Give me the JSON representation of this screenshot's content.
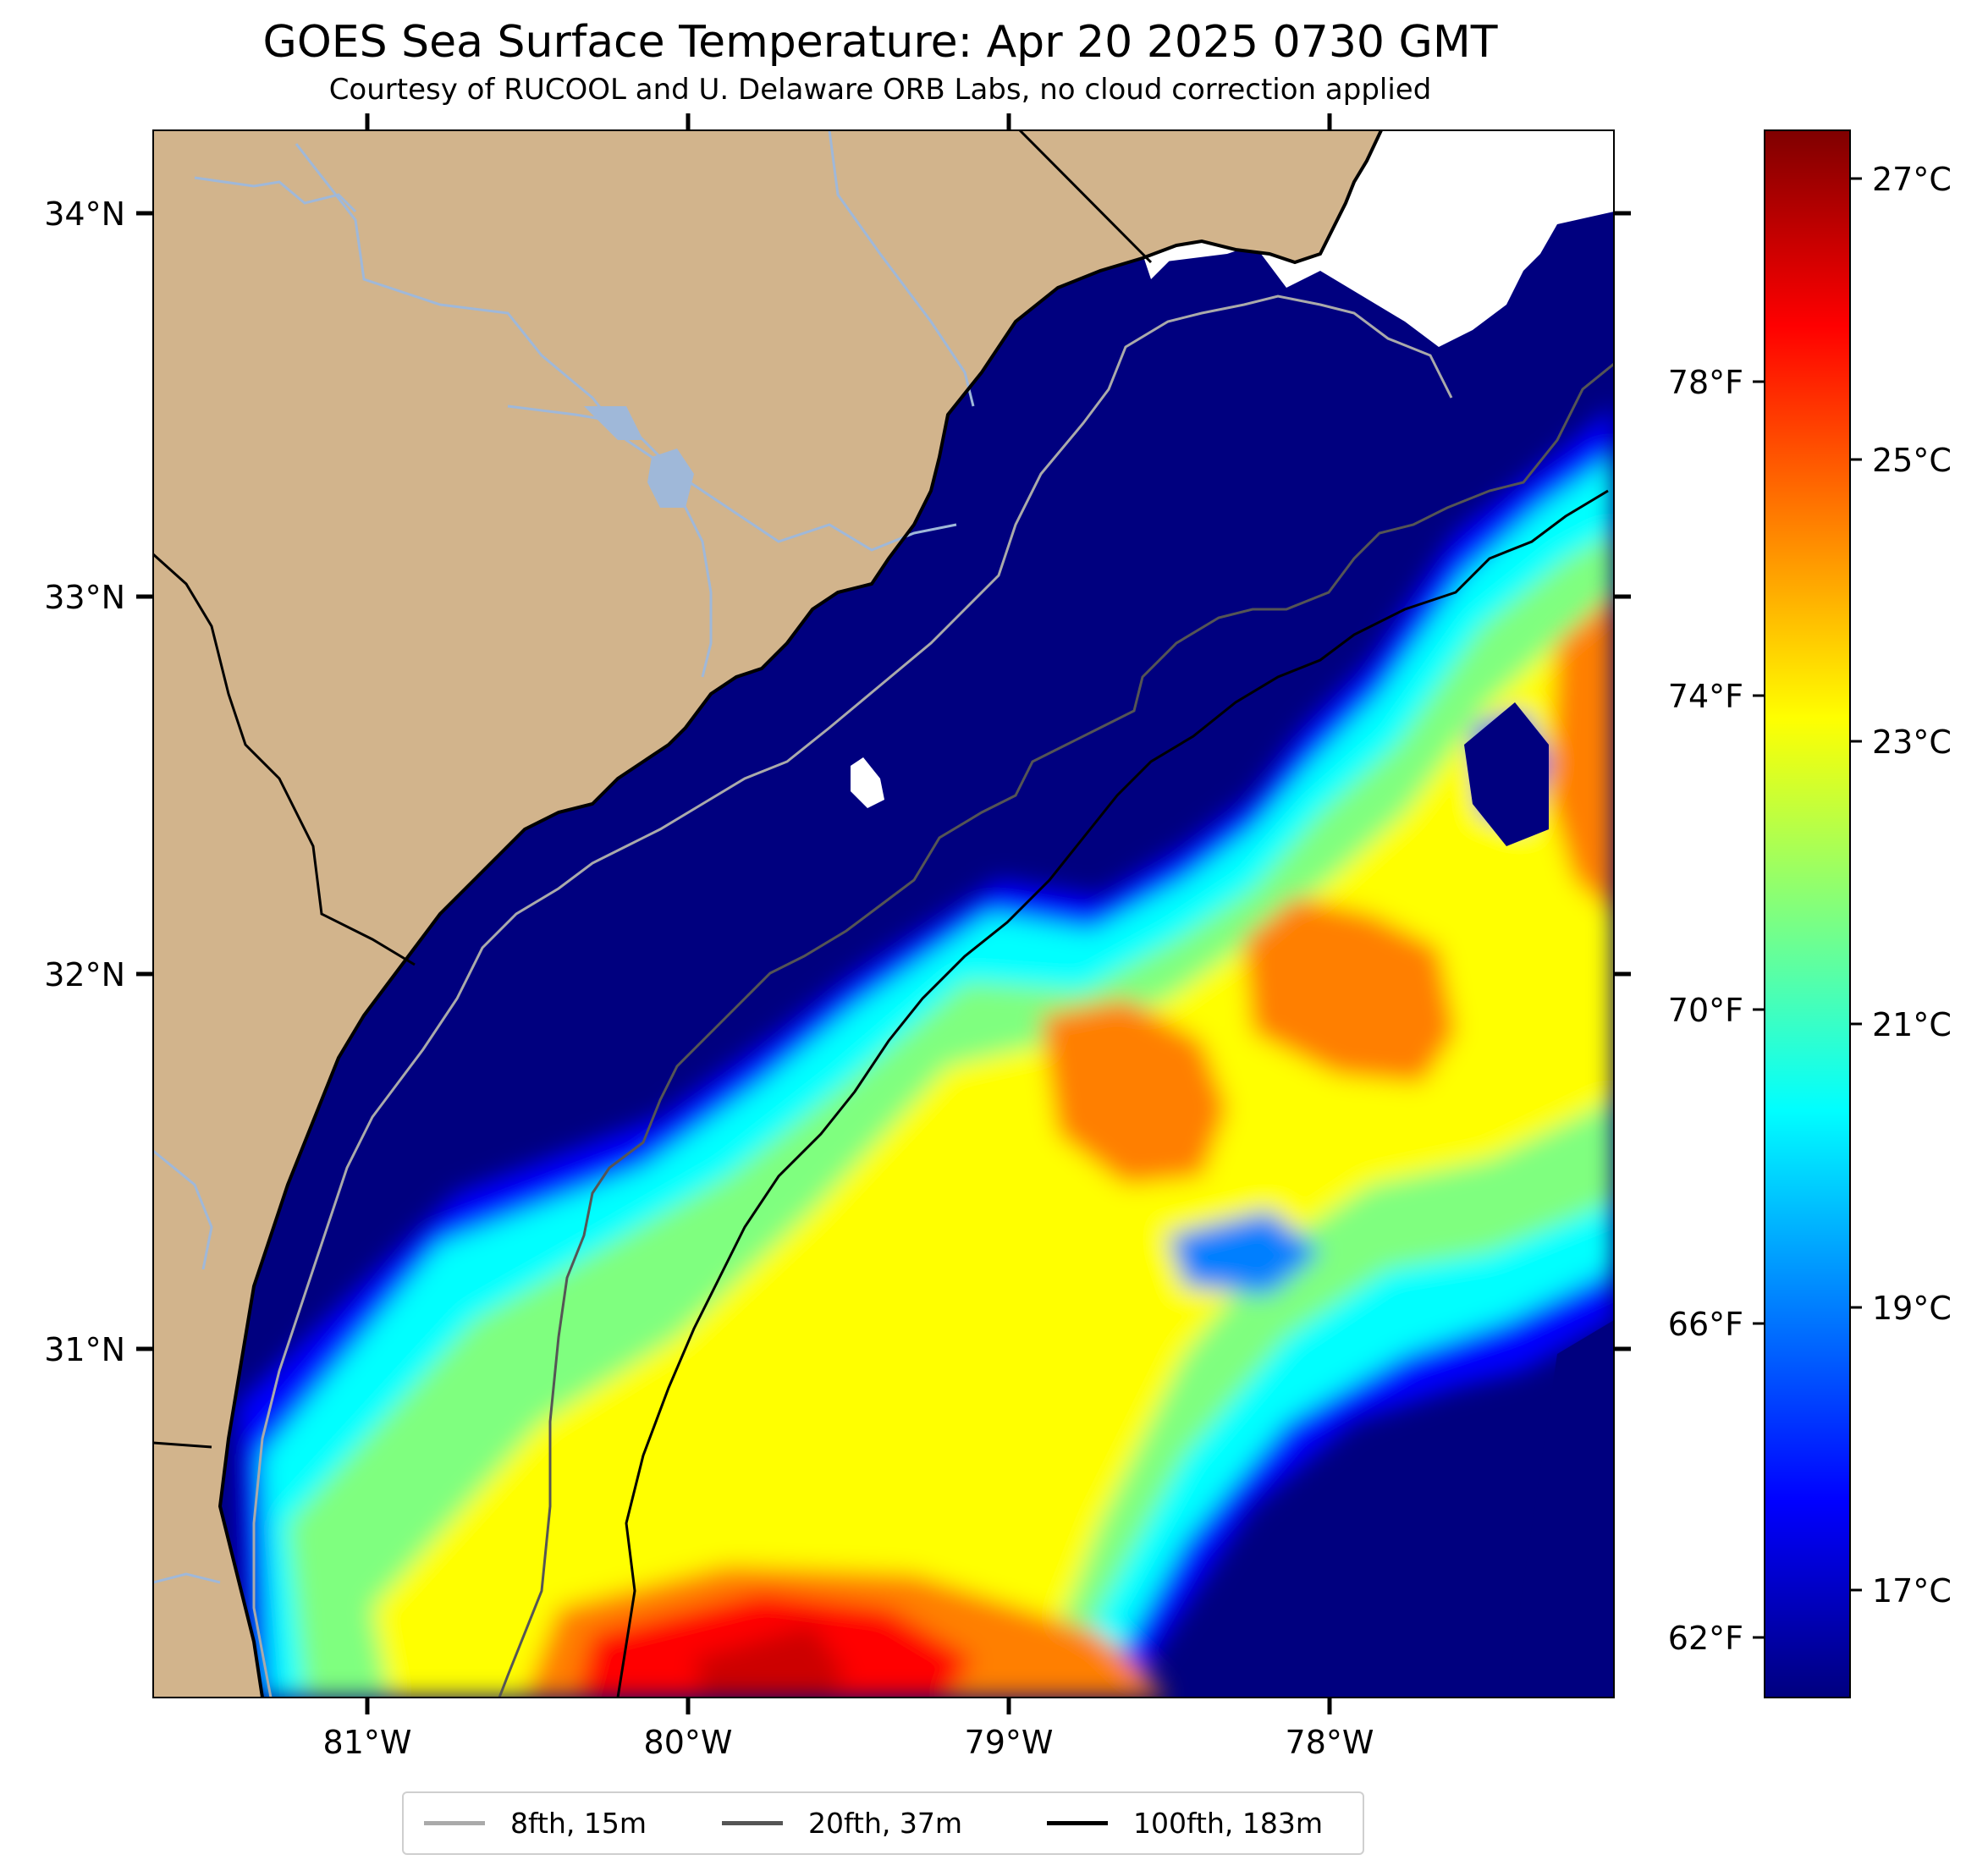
{
  "title": "GOES Sea Surface Temperature: Apr 20 2025 0730 GMT",
  "subtitle": "Courtesy of RUCOOL and U. Delaware ORB Labs, no cloud correction applied",
  "map": {
    "lat_labels": [
      "34°N",
      "33°N",
      "32°N",
      "31°N"
    ],
    "lon_labels": [
      "81°W",
      "80°W",
      "79°W",
      "78°W"
    ],
    "colors": {
      "land": "#d2b48c",
      "cloud": "#ffffff",
      "coastline": "#000000",
      "rivers": "#9fb8d9",
      "cold_water": "#00007f"
    },
    "patch_palette": [
      "#0000ff",
      "#007fff",
      "#00ffff",
      "#7fff7f",
      "#ffff00",
      "#ff7f00",
      "#ff0000",
      "#cc0000"
    ]
  },
  "colorbar": {
    "celsius_labels": [
      "27°C",
      "25°C",
      "23°C",
      "21°C",
      "19°C",
      "17°C"
    ],
    "fahrenheit_labels": [
      "78°F",
      "74°F",
      "70°F",
      "66°F",
      "62°F"
    ],
    "colors": [
      "#00007f",
      "#0000ff",
      "#007fff",
      "#00ffff",
      "#7fff7f",
      "#ffff00",
      "#ff7f00",
      "#ff0000",
      "#7f0000"
    ]
  },
  "legend": {
    "items": [
      {
        "label": "8fth, 15m",
        "color": "#aaaaaa"
      },
      {
        "label": "20fth, 37m",
        "color": "#555555"
      },
      {
        "label": "100fth, 183m",
        "color": "#000000"
      }
    ]
  }
}
